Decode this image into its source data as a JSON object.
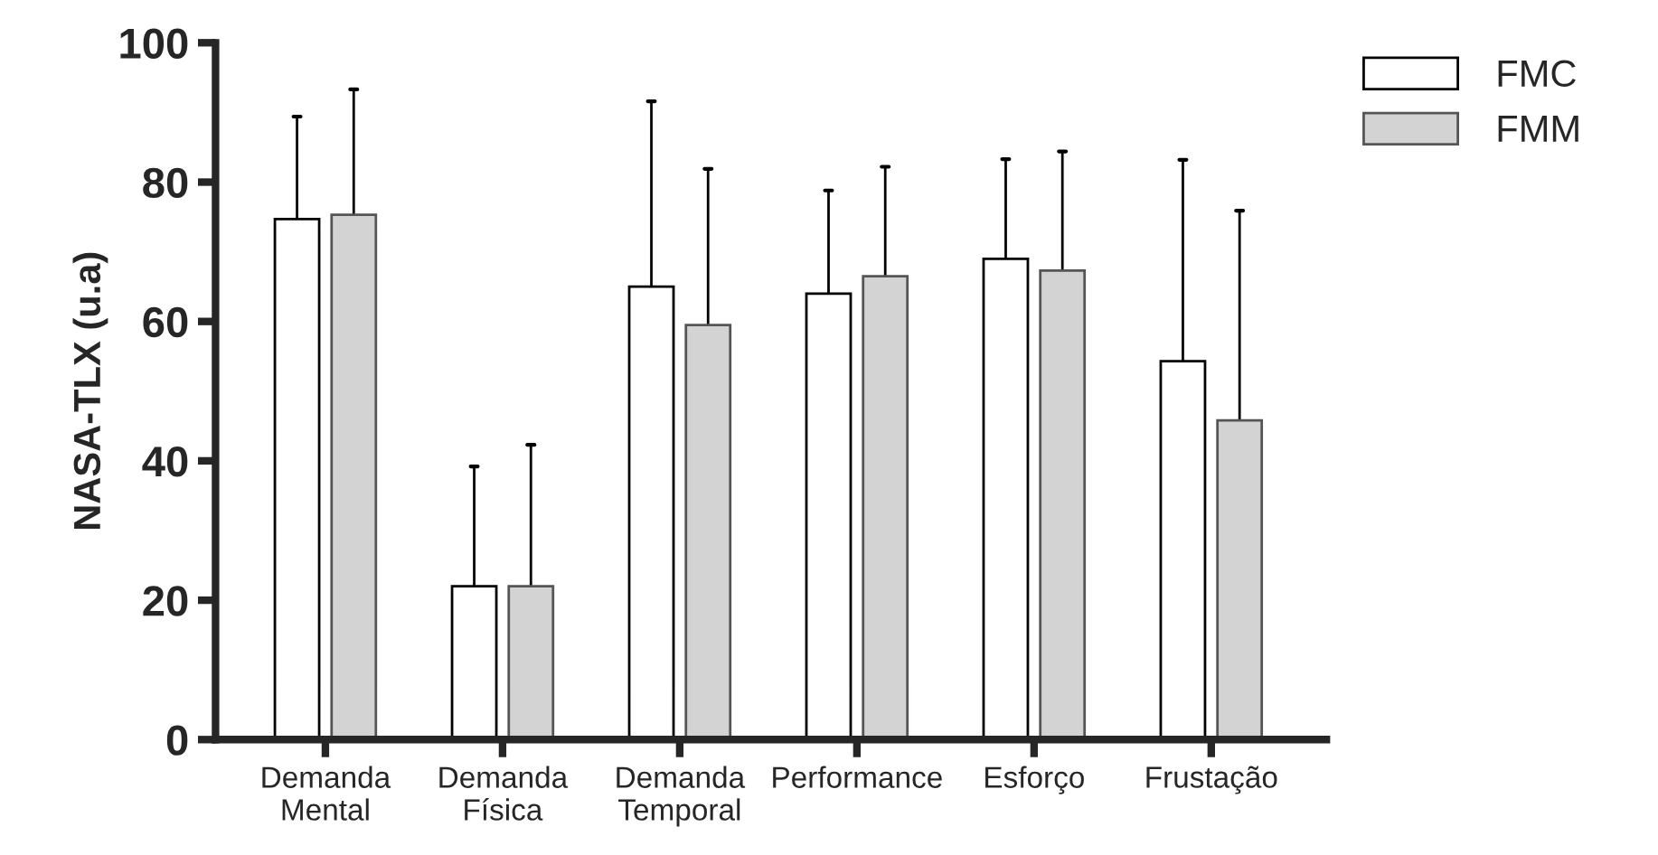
{
  "chart_data": {
    "type": "bar",
    "ylabel": "NASA-TLX (u.a)",
    "categories": [
      "Demanda\nMental",
      "Demanda\nFísica",
      "Demanda\nTemporal",
      "Performance",
      "Esforço",
      "Frustação"
    ],
    "series": [
      {
        "name": "FMC",
        "color": "#ffffff",
        "values": [
          74.7,
          22.0,
          65.0,
          64.0,
          69.0,
          54.3
        ],
        "errors": [
          [
            74.7,
            89.4
          ],
          [
            22.0,
            39.2
          ],
          [
            65.0,
            91.6
          ],
          [
            64.0,
            78.8
          ],
          [
            69.0,
            83.3
          ],
          [
            54.3,
            83.2
          ]
        ]
      },
      {
        "name": "FMM",
        "color": "#d3d3d3",
        "values": [
          75.3,
          22.0,
          59.5,
          66.5,
          67.3,
          45.8
        ],
        "errors": [
          [
            75.3,
            93.3
          ],
          [
            22.0,
            42.3
          ],
          [
            59.5,
            81.9
          ],
          [
            66.5,
            82.2
          ],
          [
            67.3,
            84.4
          ],
          [
            45.8,
            75.9
          ]
        ]
      }
    ],
    "ylim": [
      0,
      100
    ],
    "yticks": [
      0,
      20,
      40,
      60,
      80,
      100
    ],
    "grid": false,
    "legend": "top right"
  }
}
